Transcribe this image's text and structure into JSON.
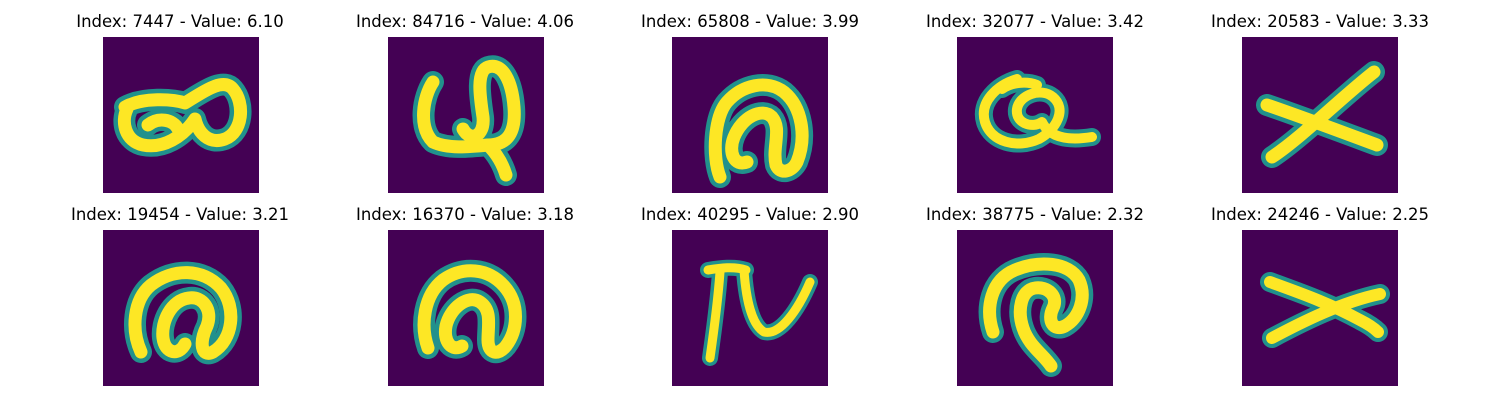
{
  "colors": {
    "background": "#440154",
    "stroke_edge": "#21918c",
    "stroke_core": "#fde725"
  },
  "panels": [
    {
      "index": "7447",
      "value": "6.10",
      "title": "Index: 7447 - Value: 6.10"
    },
    {
      "index": "84716",
      "value": "4.06",
      "title": "Index: 84716 - Value: 4.06"
    },
    {
      "index": "65808",
      "value": "3.99",
      "title": "Index: 65808 - Value: 3.99"
    },
    {
      "index": "32077",
      "value": "3.42",
      "title": "Index: 32077 - Value: 3.42"
    },
    {
      "index": "20583",
      "value": "3.33",
      "title": "Index: 20583 - Value: 3.33"
    },
    {
      "index": "19454",
      "value": "3.21",
      "title": "Index: 19454 - Value: 3.21"
    },
    {
      "index": "16370",
      "value": "3.18",
      "title": "Index: 16370 - Value: 3.18"
    },
    {
      "index": "40295",
      "value": "2.90",
      "title": "Index: 40295 - Value: 2.90"
    },
    {
      "index": "38775",
      "value": "2.32",
      "title": "Index: 38775 - Value: 2.32"
    },
    {
      "index": "24246",
      "value": "2.25",
      "title": "Index: 24246 - Value: 2.25"
    }
  ]
}
